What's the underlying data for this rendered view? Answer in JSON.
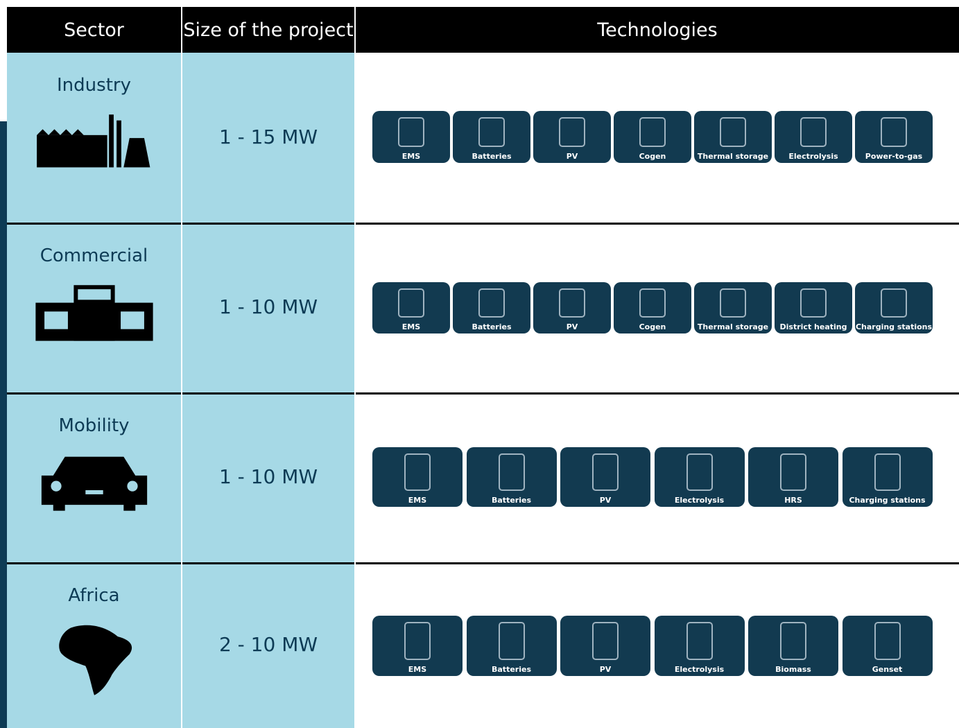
{
  "header": {
    "columns": [
      "Sector",
      "Size of the project",
      "Technologies"
    ]
  },
  "rows": [
    {
      "sector": "Industry",
      "size": "1 - 15 MW",
      "technologies": [
        "EMS",
        "Batteries",
        "PV",
        "Cogen",
        "Thermal storage",
        "Electrolysis",
        "Power-to-gas"
      ]
    },
    {
      "sector": "Commercial",
      "size": "1 - 10 MW",
      "technologies": [
        "EMS",
        "Batteries",
        "PV",
        "Cogen",
        "Thermal storage",
        "District heating",
        "Charging stations"
      ]
    },
    {
      "sector": "Mobility",
      "size": "1 - 10 MW",
      "technologies": [
        "EMS",
        "Batteries",
        "PV",
        "Electrolysis",
        "HRS",
        "Charging stations"
      ]
    },
    {
      "sector": "Africa",
      "size": "2 - 10 MW",
      "technologies": [
        "EMS",
        "Batteries",
        "PV",
        "Electrolysis",
        "Biomass",
        "Genset"
      ]
    }
  ]
}
